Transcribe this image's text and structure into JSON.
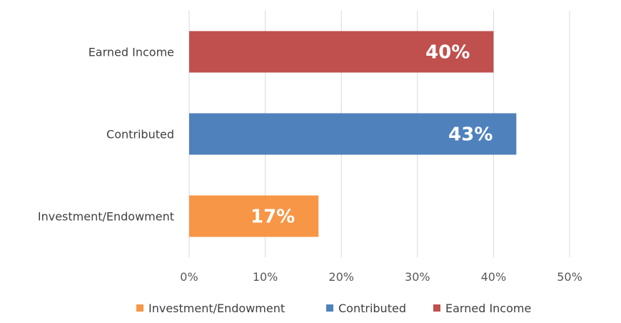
{
  "chart_data": {
    "type": "bar",
    "orientation": "horizontal",
    "categories": [
      "Earned Income",
      "Contributed",
      "Investment/Endowment"
    ],
    "values": [
      40,
      43,
      17
    ],
    "data_labels": [
      "40%",
      "43%",
      "17%"
    ],
    "colors": [
      "#c0504d",
      "#4f81bd",
      "#f79646"
    ],
    "x_ticks": [
      "0%",
      "10%",
      "20%",
      "30%",
      "40%",
      "50%"
    ],
    "xlim": [
      0,
      50
    ],
    "grid": true,
    "legend_position": "bottom",
    "legend": [
      {
        "name": "Investment/Endowment",
        "color": "#f79646"
      },
      {
        "name": "Contributed",
        "color": "#4f81bd"
      },
      {
        "name": "Earned Income",
        "color": "#c0504d"
      }
    ]
  }
}
